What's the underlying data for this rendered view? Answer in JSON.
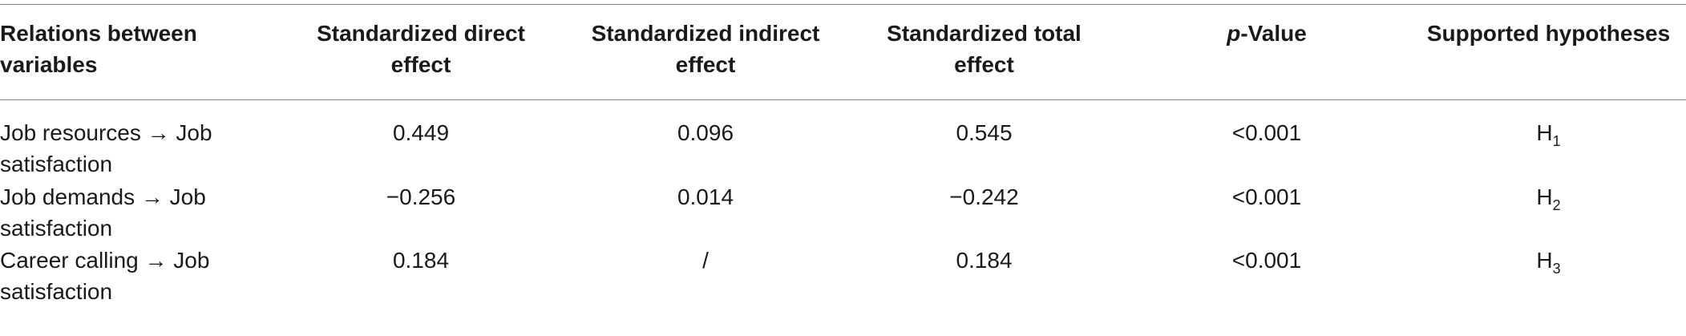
{
  "table": {
    "headers": {
      "relations": "Relations between variables",
      "direct": "Standardized direct effect",
      "indirect": "Standardized indirect effect",
      "total": "Standardized total effect",
      "p_value_italic": "p",
      "p_value_rest": "-Value",
      "hypotheses": "Supported hypotheses"
    },
    "rows": [
      {
        "relation": "Job resources → Job satisfaction",
        "direct": "0.449",
        "indirect": "0.096",
        "total": "0.545",
        "p": "<0.001",
        "hyp_main": "H",
        "hyp_sub": "1"
      },
      {
        "relation": "Job demands → Job satisfaction",
        "direct": "−0.256",
        "indirect": "0.014",
        "total": "−0.242",
        "p": "<0.001",
        "hyp_main": "H",
        "hyp_sub": "2"
      },
      {
        "relation": "Career calling → Job satisfaction",
        "direct": "0.184",
        "indirect": "/",
        "total": "0.184",
        "p": "<0.001",
        "hyp_main": "H",
        "hyp_sub": "3"
      }
    ]
  }
}
